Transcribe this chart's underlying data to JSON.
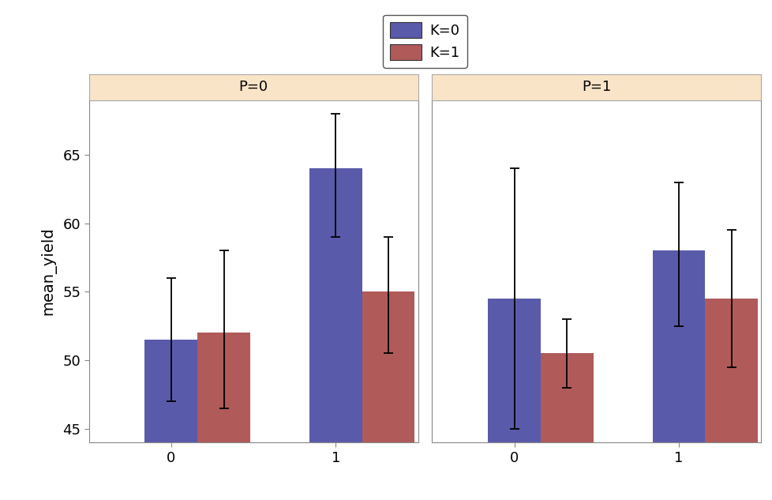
{
  "panels": [
    {
      "label": "P=0",
      "groups": [
        {
          "x_label": "0",
          "bars": [
            {
              "k": "K=0",
              "mean": 51.5,
              "lower": 47.0,
              "upper": 56.0
            },
            {
              "k": "K=1",
              "mean": 52.0,
              "lower": 46.5,
              "upper": 58.0
            }
          ]
        },
        {
          "x_label": "1",
          "bars": [
            {
              "k": "K=0",
              "mean": 64.0,
              "lower": 59.0,
              "upper": 68.0
            },
            {
              "k": "K=1",
              "mean": 55.0,
              "lower": 50.5,
              "upper": 59.0
            }
          ]
        }
      ]
    },
    {
      "label": "P=1",
      "groups": [
        {
          "x_label": "0",
          "bars": [
            {
              "k": "K=0",
              "mean": 54.5,
              "lower": 45.0,
              "upper": 64.0
            },
            {
              "k": "K=1",
              "mean": 50.5,
              "lower": 48.0,
              "upper": 53.0
            }
          ]
        },
        {
          "x_label": "1",
          "bars": [
            {
              "k": "K=0",
              "mean": 58.0,
              "lower": 52.5,
              "upper": 63.0
            },
            {
              "k": "K=1",
              "mean": 54.5,
              "lower": 49.5,
              "upper": 59.5
            }
          ]
        }
      ]
    }
  ],
  "k_colors": {
    "K=0": "#5a5aab",
    "K=1": "#b05a5a"
  },
  "bar_width": 0.32,
  "ylim": [
    44,
    69
  ],
  "yticks": [
    45,
    50,
    55,
    60,
    65
  ],
  "ylabel": "mean_yield",
  "panel_header_color": "#fae4c8",
  "panel_header_edge_color": "#aaaaaa",
  "background_color": "#ffffff",
  "plot_bg_color": "#ffffff",
  "legend_labels": [
    "K=0",
    "K=1"
  ],
  "error_bar_capsize": 4,
  "error_bar_linewidth": 1.3,
  "tick_fontsize": 13,
  "label_fontsize": 14,
  "panel_fontsize": 13
}
